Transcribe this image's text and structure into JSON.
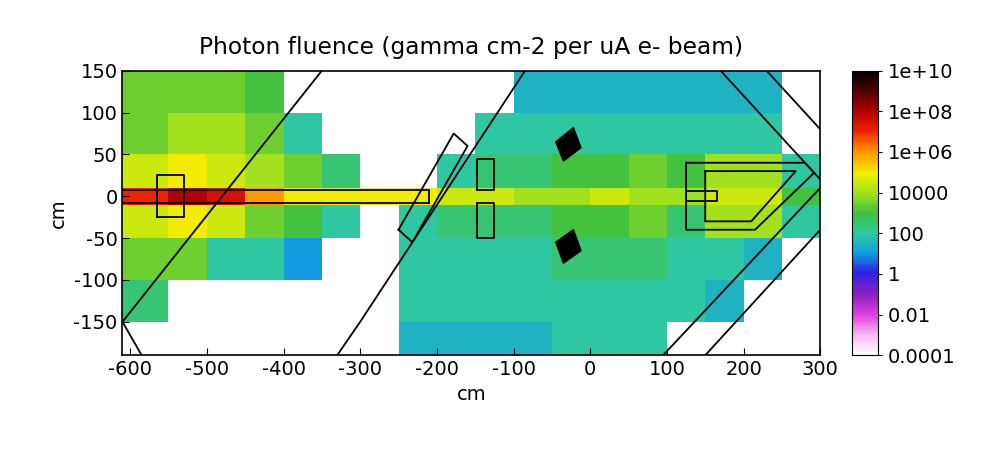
{
  "chart_data": {
    "type": "heatmap",
    "title": "Photon fluence (gamma cm-2 per uA e- beam)",
    "x_label": "cm",
    "y_label": "cm",
    "xlim": [
      -610,
      300
    ],
    "ylim": [
      -190,
      150
    ],
    "xticks": [
      -600,
      -500,
      -400,
      -300,
      -200,
      -100,
      0,
      100,
      200,
      300
    ],
    "yticks": [
      -150,
      -100,
      -50,
      0,
      50,
      100,
      150
    ],
    "x_edges": [
      -610,
      -550,
      -500,
      -450,
      -400,
      -350,
      -300,
      -250,
      -200,
      -150,
      -100,
      -50,
      0,
      50,
      100,
      150,
      200,
      250,
      300
    ],
    "y_edges": [
      -190,
      -150,
      -100,
      -50,
      -10,
      10,
      50,
      100,
      150
    ],
    "cells": [
      [
        null,
        null,
        null,
        null,
        null,
        null,
        null,
        30,
        30,
        30,
        30,
        100,
        100,
        100,
        null,
        null,
        null,
        null
      ],
      [
        300,
        null,
        null,
        null,
        null,
        null,
        null,
        100,
        100,
        100,
        100,
        100,
        100,
        100,
        100,
        30,
        null,
        null
      ],
      [
        3000,
        3000,
        100,
        100,
        10,
        null,
        null,
        100,
        100,
        100,
        100,
        300,
        300,
        300,
        100,
        100,
        30,
        null
      ],
      [
        30000,
        100000,
        30000,
        3000,
        1000,
        100,
        null,
        100,
        300,
        300,
        300,
        1000,
        1000,
        3000,
        300,
        10000,
        10000,
        100
      ],
      [
        10000000,
        100000000,
        30000000,
        1000000,
        100000,
        100000,
        100000,
        100000,
        30000,
        30000,
        10000,
        10000,
        30000,
        10000,
        10000,
        30000,
        30000,
        1000
      ],
      [
        30000,
        100000,
        30000,
        10000,
        3000,
        300,
        null,
        null,
        100,
        300,
        300,
        1000,
        1000,
        3000,
        1000,
        10000,
        10000,
        100
      ],
      [
        3000,
        10000,
        10000,
        3000,
        100,
        null,
        null,
        null,
        null,
        100,
        100,
        100,
        100,
        100,
        100,
        100,
        100,
        null
      ],
      [
        3000,
        3000,
        3000,
        1000,
        null,
        null,
        null,
        null,
        null,
        null,
        30,
        30,
        30,
        30,
        30,
        30,
        30,
        null
      ]
    ],
    "colorbar": {
      "range": [
        0.0001,
        10000000000
      ],
      "ticks": [
        0.0001,
        0.01,
        1,
        100,
        10000,
        {
          "value": 1000000,
          "label": "1e+06"
        },
        {
          "value": 100000000,
          "label": "1e+08"
        },
        {
          "value": 10000000000,
          "label": "1e+10"
        }
      ]
    }
  }
}
